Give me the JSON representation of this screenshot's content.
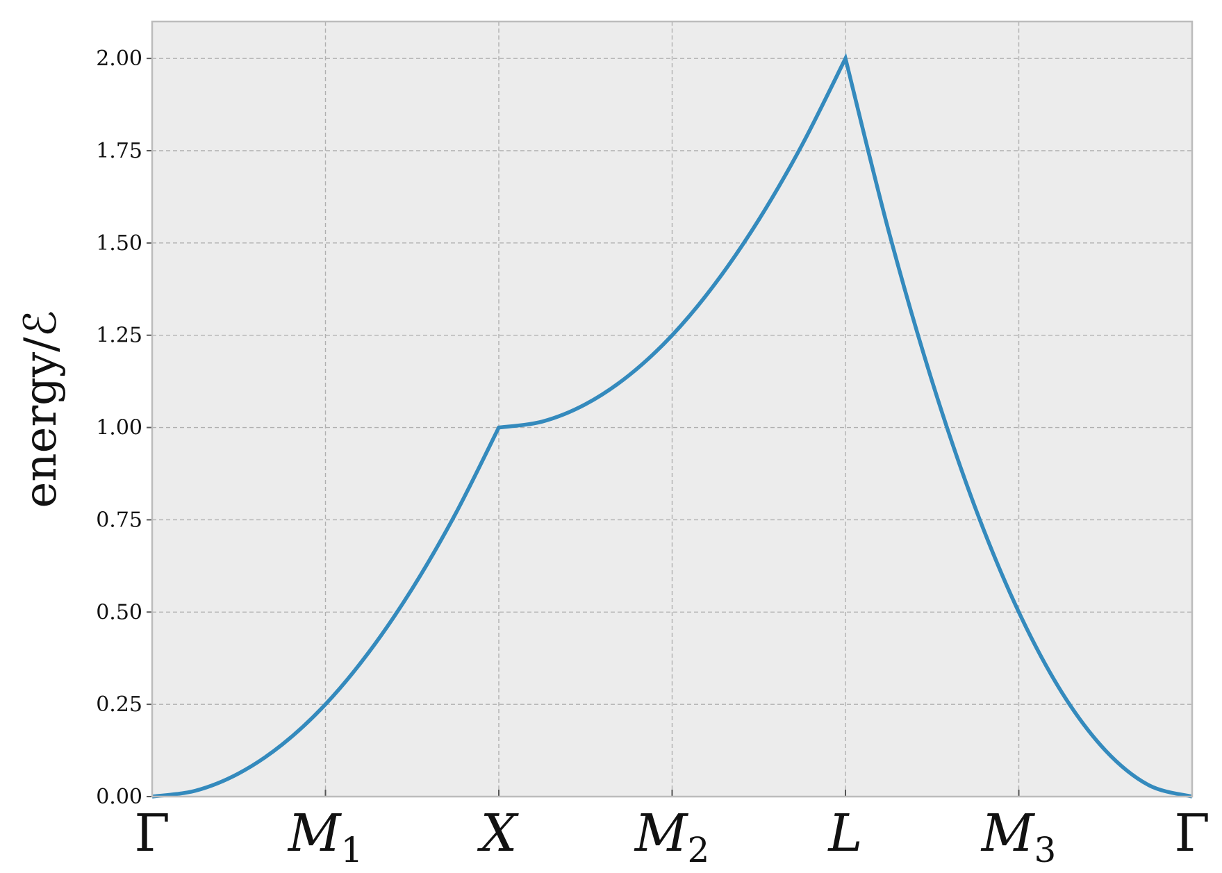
{
  "chart_data": {
    "type": "line",
    "ylabel": "energy/ℰ",
    "xlabel": "",
    "title": "",
    "ylim": [
      0,
      2.1
    ],
    "xlim": [
      0,
      6
    ],
    "yticks": [
      "0.00",
      "0.25",
      "0.50",
      "0.75",
      "1.00",
      "1.25",
      "1.50",
      "1.75",
      "2.00"
    ],
    "ytick_values": [
      0,
      0.25,
      0.5,
      0.75,
      1.0,
      1.25,
      1.5,
      1.75,
      2.0
    ],
    "xticks": [
      {
        "label": "Γ",
        "sub": ""
      },
      {
        "label": "M",
        "sub": "1"
      },
      {
        "label": "X",
        "sub": ""
      },
      {
        "label": "M",
        "sub": "2"
      },
      {
        "label": "L",
        "sub": ""
      },
      {
        "label": "M",
        "sub": "3"
      },
      {
        "label": "Γ",
        "sub": ""
      }
    ],
    "xtick_positions": [
      0,
      1,
      2,
      3,
      4,
      5,
      6
    ],
    "grid": true,
    "series": [
      {
        "color": "#348ABD",
        "x": [
          0,
          0.25,
          0.5,
          0.75,
          1.0,
          1.25,
          1.5,
          1.75,
          2.0,
          2.25,
          2.5,
          2.75,
          3.0,
          3.25,
          3.5,
          3.75,
          4.0,
          4.25,
          4.5,
          4.75,
          5.0,
          5.25,
          5.5,
          5.75,
          6.0
        ],
        "y": [
          0.0,
          0.016,
          0.063,
          0.141,
          0.25,
          0.391,
          0.563,
          0.766,
          1.0,
          1.016,
          1.063,
          1.141,
          1.25,
          1.391,
          1.563,
          1.766,
          2.0,
          1.531,
          1.125,
          0.781,
          0.5,
          0.281,
          0.125,
          0.031,
          0.0
        ]
      }
    ]
  },
  "colors": {
    "plot_background": "#ececec",
    "line": "#348ABD"
  }
}
